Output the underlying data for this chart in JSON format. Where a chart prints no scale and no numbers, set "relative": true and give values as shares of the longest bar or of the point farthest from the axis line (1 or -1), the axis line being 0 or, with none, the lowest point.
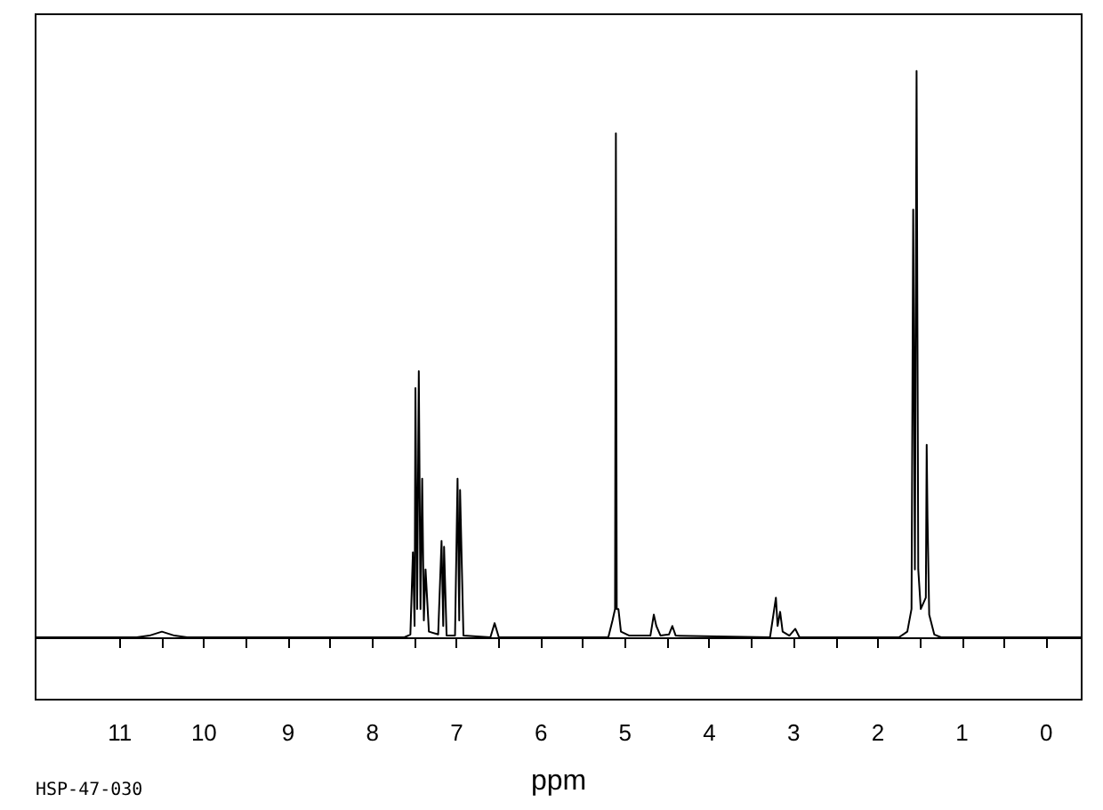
{
  "chart_data": {
    "type": "line",
    "relative": true,
    "xlabel": "ppm",
    "annotations": [
      "HSP-47-030"
    ],
    "xlim": [
      12.0,
      -0.42
    ],
    "xticks": [
      0,
      {
        "value": 0.5,
        "label": null
      },
      1,
      {
        "value": 1.5,
        "label": null
      },
      2,
      {
        "value": 2.5,
        "label": null
      },
      3,
      {
        "value": 3.5,
        "label": null
      },
      4,
      {
        "value": 4.5,
        "label": null
      },
      5,
      {
        "value": 5.5,
        "label": null
      },
      6,
      {
        "value": 6.5,
        "label": null
      },
      7,
      {
        "value": 7.5,
        "label": null
      },
      8,
      {
        "value": 8.5,
        "label": null
      },
      9,
      {
        "value": 9.5,
        "label": null
      },
      10,
      {
        "value": 10.5,
        "label": null
      },
      11
    ],
    "marker": "none",
    "line_style": "solid",
    "series": [
      {
        "color": "#000000",
        "x": [
          12.0,
          10.8,
          10.65,
          10.5,
          10.35,
          10.2,
          7.62,
          7.55,
          7.52,
          7.5,
          7.49,
          7.47,
          7.45,
          7.43,
          7.41,
          7.39,
          7.37,
          7.33,
          7.22,
          7.18,
          7.16,
          7.15,
          7.12,
          7.02,
          6.99,
          6.97,
          6.96,
          6.92,
          6.6,
          6.55,
          6.5,
          5.2,
          5.15,
          5.12,
          5.11,
          5.1,
          5.08,
          5.05,
          4.95,
          4.7,
          4.66,
          4.63,
          4.58,
          4.48,
          4.44,
          4.4,
          3.28,
          3.24,
          3.21,
          3.19,
          3.16,
          3.13,
          3.05,
          2.98,
          2.93,
          1.75,
          1.65,
          1.6,
          1.58,
          1.56,
          1.54,
          1.52,
          1.49,
          1.43,
          1.42,
          1.41,
          1.39,
          1.33,
          1.25,
          -0.42
        ],
        "values": [
          0,
          0,
          0.003,
          0.01,
          0.003,
          0,
          0,
          0.005,
          0.15,
          0.02,
          0.44,
          0.05,
          0.47,
          0.05,
          0.28,
          0.03,
          0.12,
          0.01,
          0.005,
          0.17,
          0.02,
          0.16,
          0.003,
          0.003,
          0.28,
          0.03,
          0.26,
          0.003,
          0,
          0.025,
          0,
          0,
          0.03,
          0.05,
          0.89,
          0.05,
          0.05,
          0.01,
          0.003,
          0.003,
          0.04,
          0.02,
          0.003,
          0.005,
          0.02,
          0.003,
          0,
          0.04,
          0.07,
          0.02,
          0.045,
          0.01,
          0.003,
          0.015,
          0,
          0,
          0.01,
          0.05,
          0.755,
          0.12,
          1.0,
          0.12,
          0.05,
          0.07,
          0.34,
          0.21,
          0.04,
          0.005,
          0,
          0
        ]
      }
    ]
  }
}
